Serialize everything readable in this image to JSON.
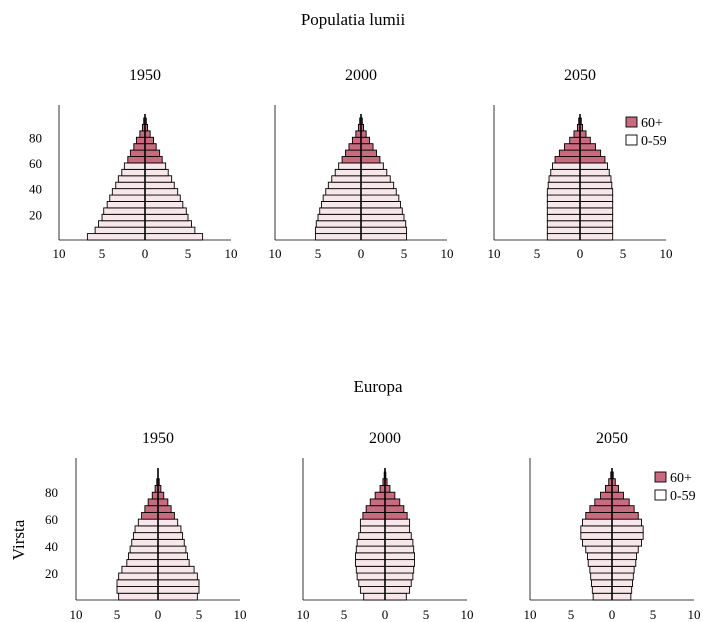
{
  "colors": {
    "old": "#c96b7f",
    "young": "#f7e6ea",
    "stroke": "#000000"
  },
  "chart_data": [
    {
      "type": "bar",
      "subtype": "population-pyramid",
      "title": "Populatia lumii",
      "ylabel": "",
      "yticks": [
        "20",
        "40",
        "60",
        "80"
      ],
      "xticks": [
        "10",
        "5",
        "0",
        "5",
        "10"
      ],
      "xlim": [
        -10,
        10
      ],
      "legend": {
        "position": "right",
        "entries": [
          "60+",
          "0-59"
        ]
      },
      "panels": [
        {
          "title": "1950",
          "bar_step": 5,
          "old_from": 60,
          "left": [
            6.7,
            5.8,
            5.4,
            5.0,
            4.8,
            4.4,
            4.1,
            3.8,
            3.4,
            3.1,
            2.7,
            2.4,
            2.0,
            1.7,
            1.3,
            1.0,
            0.6,
            0.3,
            0.15
          ],
          "right": [
            6.7,
            5.8,
            5.4,
            5.0,
            4.8,
            4.4,
            4.1,
            3.8,
            3.4,
            3.1,
            2.7,
            2.4,
            2.0,
            1.7,
            1.3,
            1.0,
            0.6,
            0.3,
            0.15
          ]
        },
        {
          "title": "2000",
          "bar_step": 5,
          "old_from": 60,
          "left": [
            5.3,
            5.3,
            5.2,
            5.0,
            4.8,
            4.6,
            4.4,
            4.1,
            3.8,
            3.4,
            3.0,
            2.6,
            2.2,
            1.8,
            1.4,
            1.0,
            0.6,
            0.3,
            0.15
          ],
          "right": [
            5.3,
            5.3,
            5.2,
            5.0,
            4.8,
            4.6,
            4.4,
            4.1,
            3.8,
            3.4,
            3.0,
            2.6,
            2.2,
            1.8,
            1.4,
            1.0,
            0.6,
            0.3,
            0.15
          ]
        },
        {
          "title": "2050",
          "bar_step": 5,
          "old_from": 60,
          "left": [
            3.8,
            3.8,
            3.8,
            3.8,
            3.8,
            3.8,
            3.8,
            3.8,
            3.7,
            3.6,
            3.4,
            3.2,
            2.9,
            2.4,
            1.8,
            1.2,
            0.7,
            0.3,
            0.15
          ],
          "right": [
            3.8,
            3.8,
            3.8,
            3.8,
            3.8,
            3.8,
            3.8,
            3.8,
            3.7,
            3.6,
            3.4,
            3.2,
            2.9,
            2.4,
            1.8,
            1.2,
            0.7,
            0.3,
            0.15
          ]
        }
      ]
    },
    {
      "type": "bar",
      "subtype": "population-pyramid",
      "title": "Europa",
      "ylabel": "Virsta",
      "yticks": [
        "20",
        "40",
        "60",
        "80"
      ],
      "xticks": [
        "10",
        "5",
        "0",
        "5",
        "10"
      ],
      "xlim": [
        -10,
        10
      ],
      "legend": {
        "position": "right",
        "entries": [
          "60+",
          "0-59"
        ]
      },
      "panels": [
        {
          "title": "1950",
          "bar_step": 5,
          "old_from": 60,
          "left": [
            4.8,
            5.0,
            5.0,
            4.8,
            4.4,
            3.8,
            3.6,
            3.4,
            3.2,
            3.0,
            2.8,
            2.4,
            2.0,
            1.6,
            1.2,
            0.7,
            0.35,
            0.15
          ],
          "right": [
            4.8,
            5.0,
            5.0,
            4.8,
            4.4,
            3.8,
            3.6,
            3.4,
            3.2,
            3.0,
            2.8,
            2.4,
            2.0,
            1.6,
            1.2,
            0.7,
            0.35,
            0.15
          ]
        },
        {
          "title": "2000",
          "bar_step": 5,
          "old_from": 60,
          "left": [
            2.6,
            3.0,
            3.2,
            3.4,
            3.5,
            3.6,
            3.6,
            3.5,
            3.4,
            3.2,
            3.0,
            3.0,
            2.7,
            2.3,
            1.8,
            1.2,
            0.6,
            0.25,
            0.1
          ],
          "right": [
            2.6,
            3.0,
            3.2,
            3.4,
            3.5,
            3.6,
            3.6,
            3.5,
            3.4,
            3.2,
            3.0,
            3.0,
            2.7,
            2.3,
            1.8,
            1.2,
            0.6,
            0.25,
            0.1
          ]
        },
        {
          "title": "2050",
          "bar_step": 5,
          "old_from": 60,
          "left": [
            2.3,
            2.4,
            2.5,
            2.6,
            2.7,
            2.9,
            3.0,
            3.2,
            3.6,
            3.8,
            3.8,
            3.6,
            3.2,
            2.7,
            2.1,
            1.4,
            0.8,
            0.4,
            0.15
          ],
          "right": [
            2.3,
            2.4,
            2.5,
            2.6,
            2.7,
            2.9,
            3.0,
            3.2,
            3.6,
            3.8,
            3.8,
            3.6,
            3.2,
            2.7,
            2.1,
            1.4,
            0.8,
            0.4,
            0.15
          ]
        }
      ]
    }
  ]
}
